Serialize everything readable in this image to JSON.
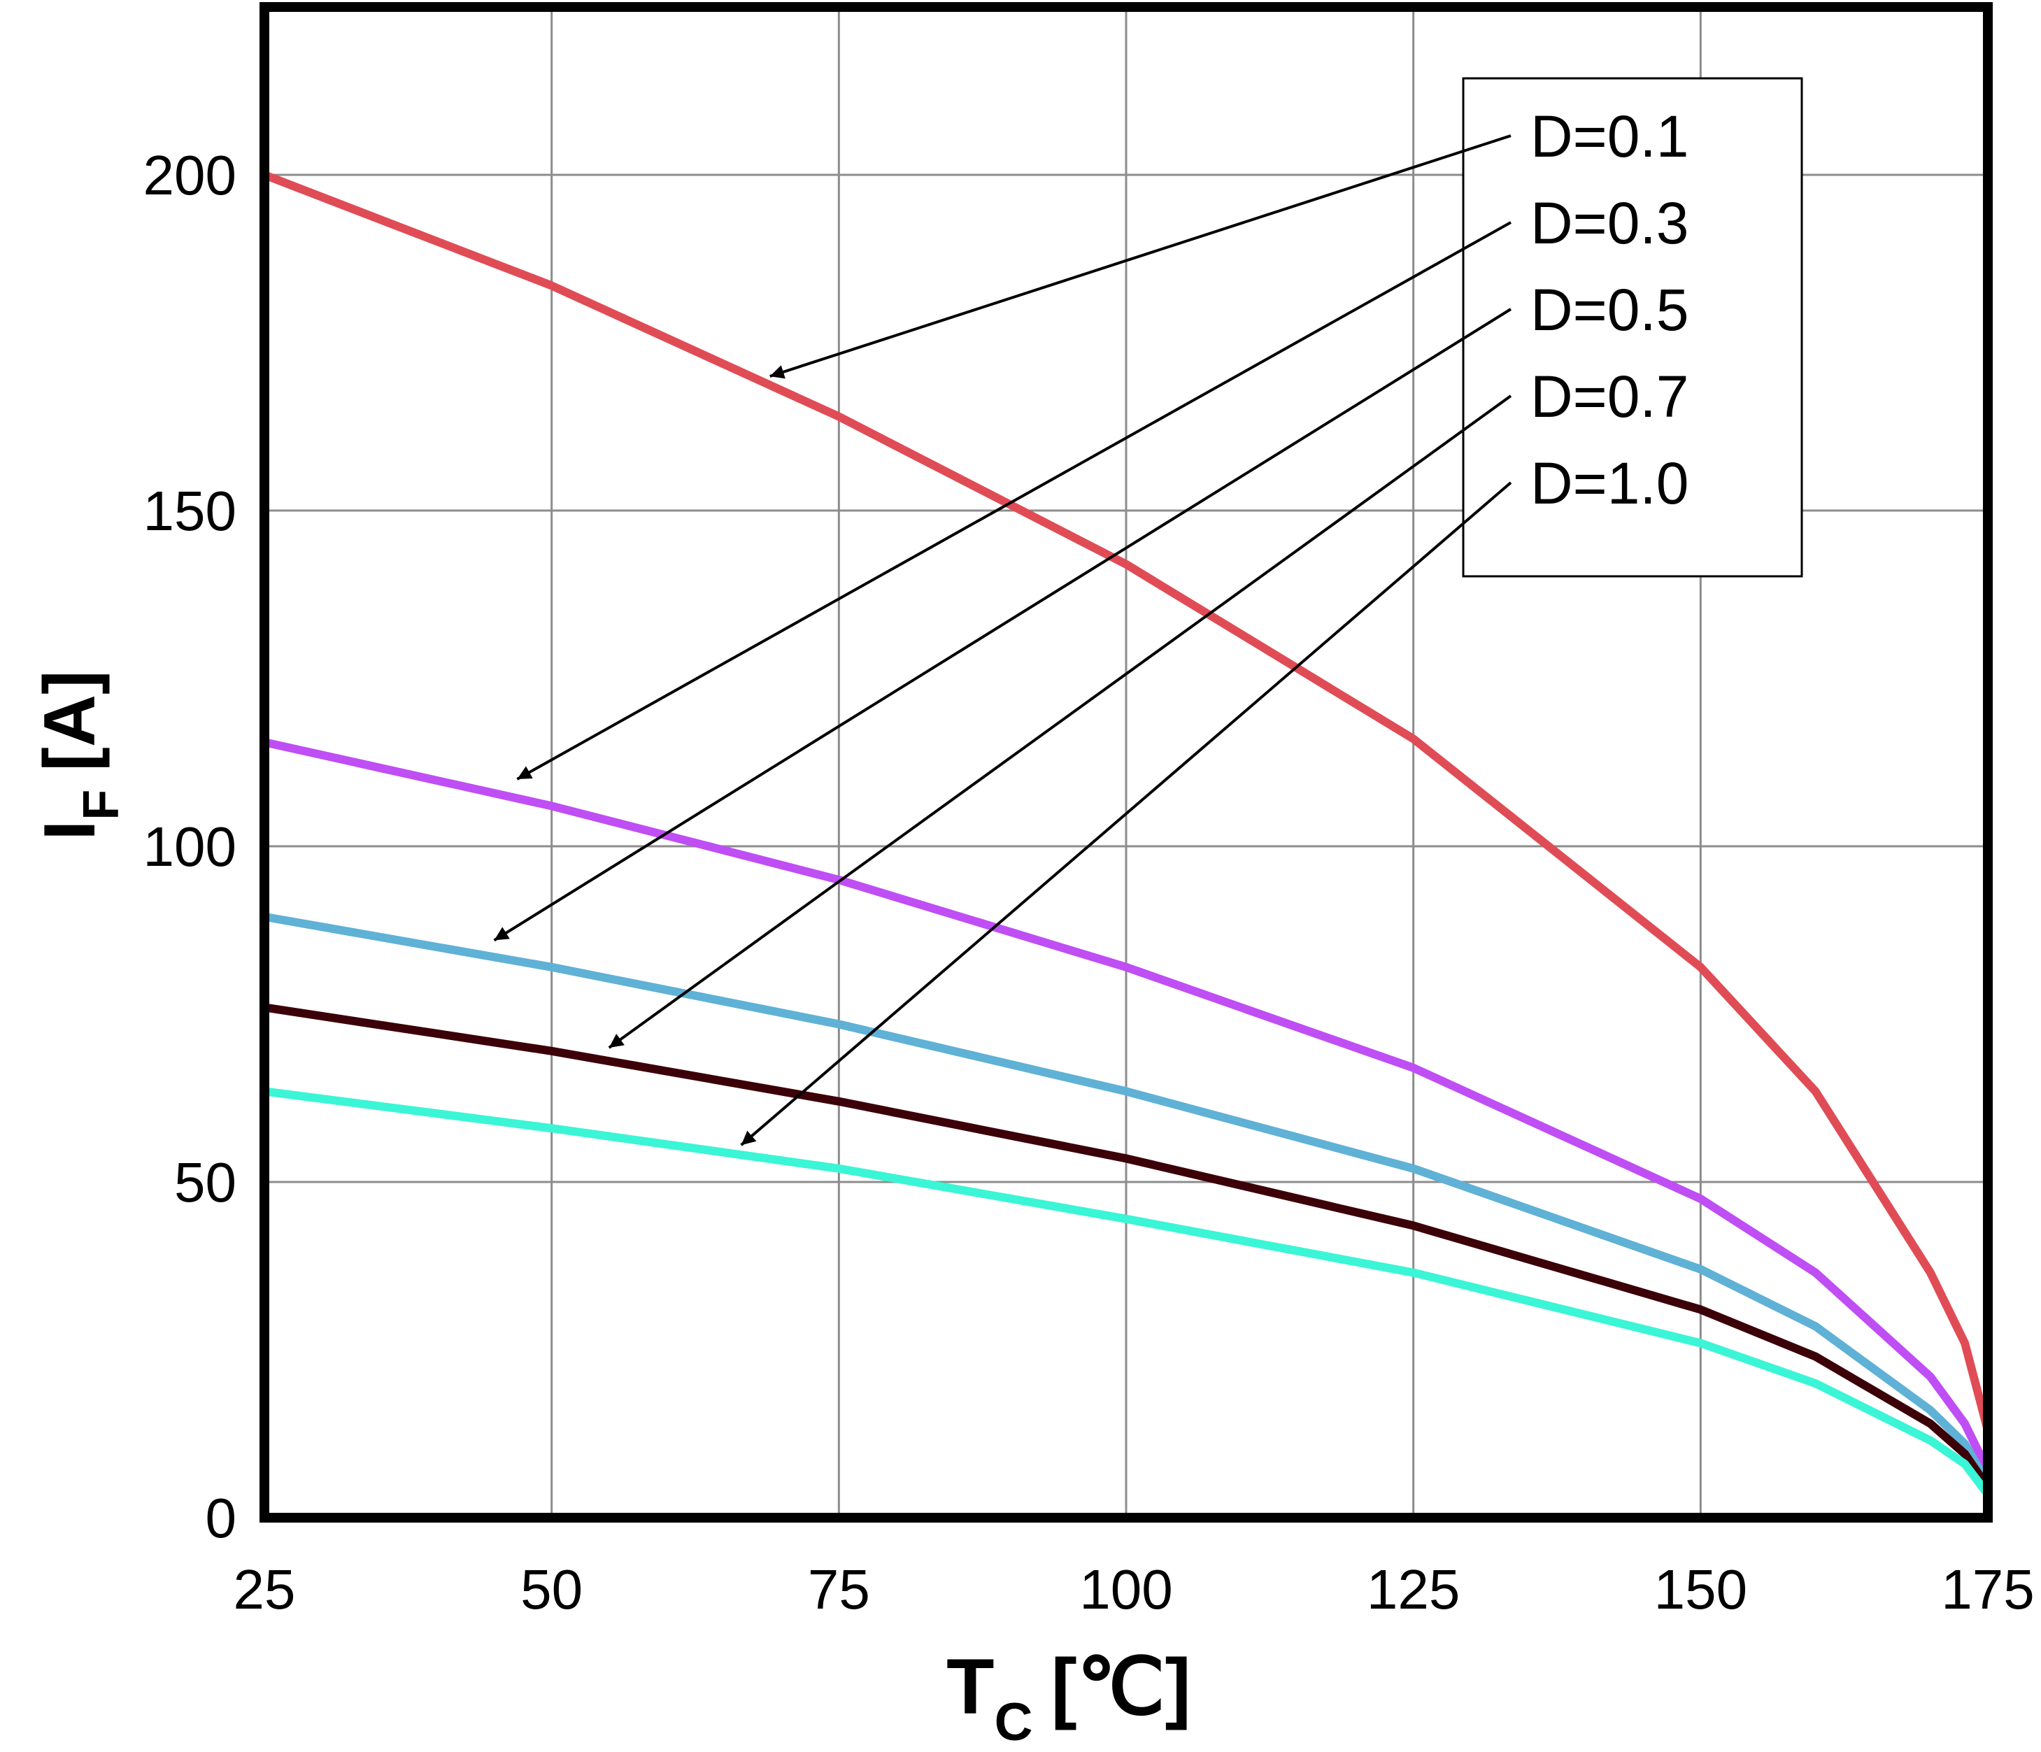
{
  "chart_data": {
    "type": "line",
    "xlabel": "T",
    "xlabel_sub": "C",
    "xlabel_unit": "[℃]",
    "ylabel": "I",
    "ylabel_sub": "F",
    "ylabel_unit": "[A]",
    "xlim": [
      25,
      175
    ],
    "ylim": [
      0,
      225
    ],
    "x_ticks": [
      25,
      50,
      75,
      100,
      125,
      150,
      175
    ],
    "y_ticks": [
      0,
      50,
      100,
      150,
      200
    ],
    "grid": true,
    "legend_position": "top-right",
    "series": [
      {
        "name": "D=0.1",
        "color": "#e04c55",
        "points": [
          [
            25,
            200
          ],
          [
            50,
            183.5
          ],
          [
            75,
            164
          ],
          [
            100,
            142
          ],
          [
            125,
            116
          ],
          [
            150,
            82
          ],
          [
            160,
            63.5
          ],
          [
            170,
            36.5
          ],
          [
            173,
            26
          ],
          [
            175,
            13
          ]
        ]
      },
      {
        "name": "D=0.3",
        "color": "#bf4ef4",
        "points": [
          [
            25,
            115.5
          ],
          [
            50,
            106
          ],
          [
            75,
            95
          ],
          [
            100,
            82
          ],
          [
            125,
            67
          ],
          [
            150,
            47.5
          ],
          [
            160,
            36.5
          ],
          [
            170,
            21
          ],
          [
            173,
            14
          ],
          [
            175,
            7
          ]
        ]
      },
      {
        "name": "D=0.5",
        "color": "#5fb1d6",
        "points": [
          [
            25,
            89.5
          ],
          [
            50,
            82
          ],
          [
            75,
            73.5
          ],
          [
            100,
            63.5
          ],
          [
            125,
            52
          ],
          [
            150,
            37
          ],
          [
            160,
            28.5
          ],
          [
            170,
            16
          ],
          [
            173,
            11
          ],
          [
            175,
            5
          ]
        ]
      },
      {
        "name": "D=0.7",
        "color": "#3c0008",
        "points": [
          [
            25,
            76
          ],
          [
            50,
            69.5
          ],
          [
            75,
            62
          ],
          [
            100,
            53.5
          ],
          [
            125,
            43.5
          ],
          [
            150,
            31
          ],
          [
            160,
            24
          ],
          [
            170,
            14
          ],
          [
            173,
            9.5
          ],
          [
            175,
            4.5
          ]
        ]
      },
      {
        "name": "D=1.0",
        "color": "#3af5d6",
        "points": [
          [
            25,
            63.5
          ],
          [
            50,
            58
          ],
          [
            75,
            52
          ],
          [
            100,
            44.5
          ],
          [
            125,
            36.5
          ],
          [
            150,
            26
          ],
          [
            160,
            20
          ],
          [
            170,
            11.5
          ],
          [
            173,
            8
          ],
          [
            175,
            3.5
          ]
        ]
      }
    ],
    "annotations": [
      {
        "label": "D=0.1",
        "target": [
          69,
          170
        ]
      },
      {
        "label": "D=0.3",
        "target": [
          47,
          110
        ]
      },
      {
        "label": "D=0.5",
        "target": [
          45,
          86
        ]
      },
      {
        "label": "D=0.7",
        "target": [
          55,
          70
        ]
      },
      {
        "label": "D=1.0",
        "target": [
          66.5,
          55.5
        ]
      }
    ]
  }
}
